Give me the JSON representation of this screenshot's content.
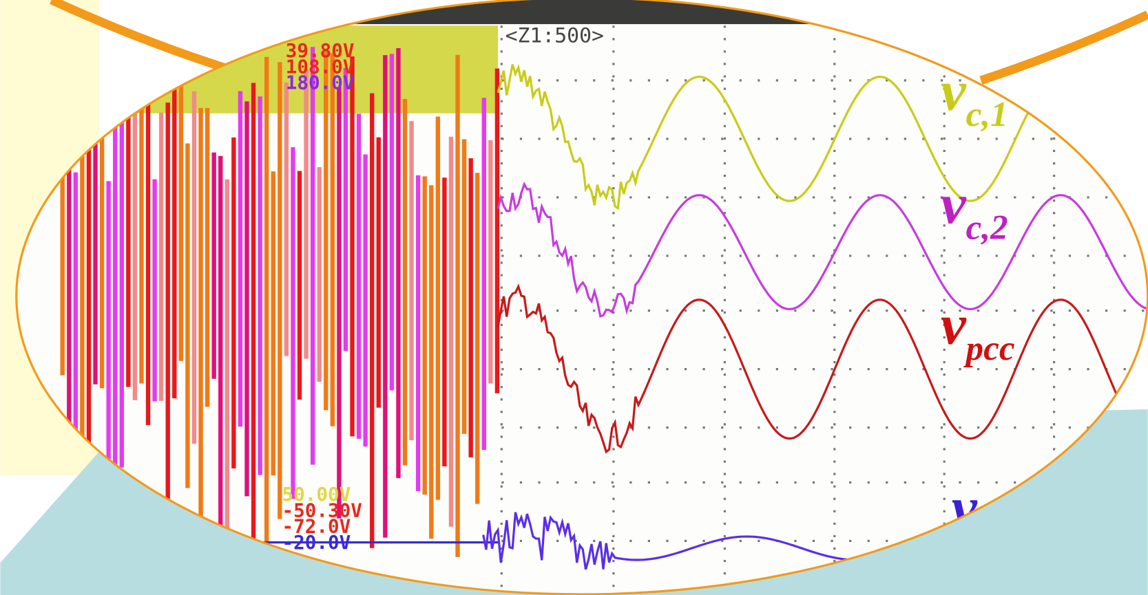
{
  "scope": {
    "timebase": "<Z1:500>",
    "upper_scales": [
      "39.80V",
      "108.0V",
      "180.0V"
    ],
    "lower_scales": [
      "50.00V",
      "-50.30V",
      "-72.0V",
      "-20.0V"
    ]
  },
  "traces": [
    {
      "symbol": "v",
      "subscript": "c,1"
    },
    {
      "symbol": "v",
      "subscript": "c,2"
    },
    {
      "symbol": "v",
      "subscript": "pcc"
    },
    {
      "symbol": "v",
      "subscript": ""
    }
  ]
}
